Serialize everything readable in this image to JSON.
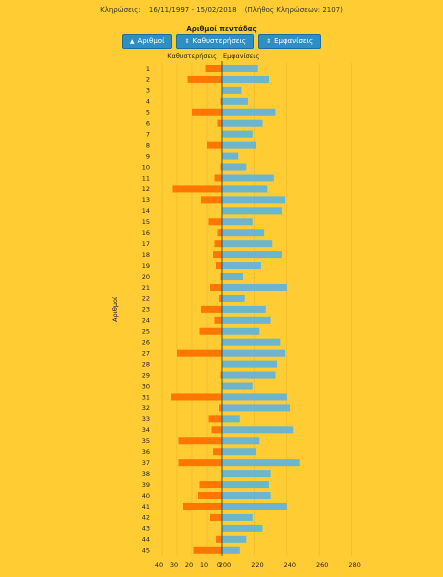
{
  "header": {
    "label": "Κληρώσεις:",
    "range": "16/11/1997 - 15/02/2018",
    "count": "(Πλήθος Κληρώσεων: 2107)"
  },
  "section_title": "Αριθμοί πεντάδας",
  "buttons": [
    {
      "label": "Αριθμοί",
      "icon": "caret-up-icon"
    },
    {
      "label": "Καθυστερήσεις",
      "icon": "sort-icon"
    },
    {
      "label": "Εμφανίσεις",
      "icon": "sort-icon"
    }
  ],
  "colors": {
    "background": "#ffcc33",
    "delay_bar": "#ff7700",
    "appearance_bar": "#6bb5cf",
    "button": "#2f8fc4"
  },
  "chart_data": {
    "type": "bar",
    "orientation": "horizontal-butterfly",
    "ylabel": "Αριθμοί",
    "left_axis_label": "Καθυστερήσεις",
    "right_axis_label": "Εμφανίσεις",
    "left_ticks": [
      40,
      30,
      20,
      10,
      0
    ],
    "right_ticks": [
      200,
      220,
      240,
      260,
      280
    ],
    "left_range": [
      0,
      44
    ],
    "right_range": [
      200,
      300
    ],
    "categories": [
      "1",
      "2",
      "3",
      "4",
      "5",
      "6",
      "7",
      "8",
      "9",
      "10",
      "11",
      "12",
      "13",
      "14",
      "15",
      "16",
      "17",
      "18",
      "19",
      "20",
      "21",
      "22",
      "23",
      "24",
      "25",
      "26",
      "27",
      "28",
      "29",
      "30",
      "31",
      "32",
      "33",
      "34",
      "35",
      "36",
      "37",
      "38",
      "39",
      "40",
      "41",
      "42",
      "43",
      "44",
      "45"
    ],
    "series": [
      {
        "name": "Καθυστερήσεις",
        "values": [
          11,
          23,
          0,
          1,
          20,
          3,
          0,
          10,
          0,
          1,
          5,
          33,
          14,
          0,
          9,
          3,
          5,
          6,
          4,
          1,
          8,
          2,
          14,
          5,
          15,
          0,
          30,
          0,
          1,
          0,
          34,
          2,
          9,
          7,
          29,
          6,
          29,
          0,
          15,
          16,
          26,
          8,
          0,
          4,
          19
        ]
      },
      {
        "name": "Εμφανίσεις",
        "values": [
          222,
          229,
          212,
          216,
          233,
          225,
          219,
          221,
          210,
          215,
          232,
          228,
          239,
          237,
          219,
          226,
          231,
          237,
          224,
          213,
          240,
          214,
          227,
          230,
          223,
          236,
          239,
          234,
          233,
          219,
          240,
          242,
          211,
          244,
          223,
          221,
          248,
          230,
          229,
          230,
          240,
          219,
          225,
          215,
          211
        ]
      }
    ]
  }
}
